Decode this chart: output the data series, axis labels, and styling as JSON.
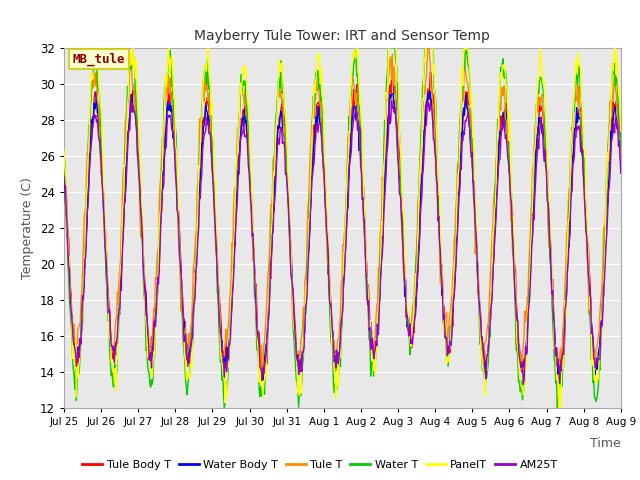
{
  "title": "Mayberry Tule Tower: IRT and Sensor Temp",
  "xlabel": "Time",
  "ylabel": "Temperature (C)",
  "ylim": [
    12,
    32
  ],
  "yticks": [
    12,
    14,
    16,
    18,
    20,
    22,
    24,
    26,
    28,
    30,
    32
  ],
  "xtick_labels": [
    "Jul 25",
    "Jul 26",
    "Jul 27",
    "Jul 28",
    "Jul 29",
    "Jul 30",
    "Jul 31",
    "Aug 1",
    "Aug 2",
    "Aug 3",
    "Aug 4",
    "Aug 5",
    "Aug 6",
    "Aug 7",
    "Aug 8",
    "Aug 9"
  ],
  "annotation_text": "MB_tule",
  "annotation_color": "#8B0000",
  "annotation_bg": "#FFFFCC",
  "annotation_border": "#CCCC00",
  "series_colors": {
    "Tule Body T": "#FF0000",
    "Water Body T": "#0000FF",
    "Tule T": "#FF8C00",
    "Water T": "#00CC00",
    "PanelT": "#FFFF00",
    "AM25T": "#9900CC"
  },
  "background_color": "#E8E8E8",
  "grid_color": "#FFFFFF",
  "n_days": 15,
  "points_per_day": 48
}
